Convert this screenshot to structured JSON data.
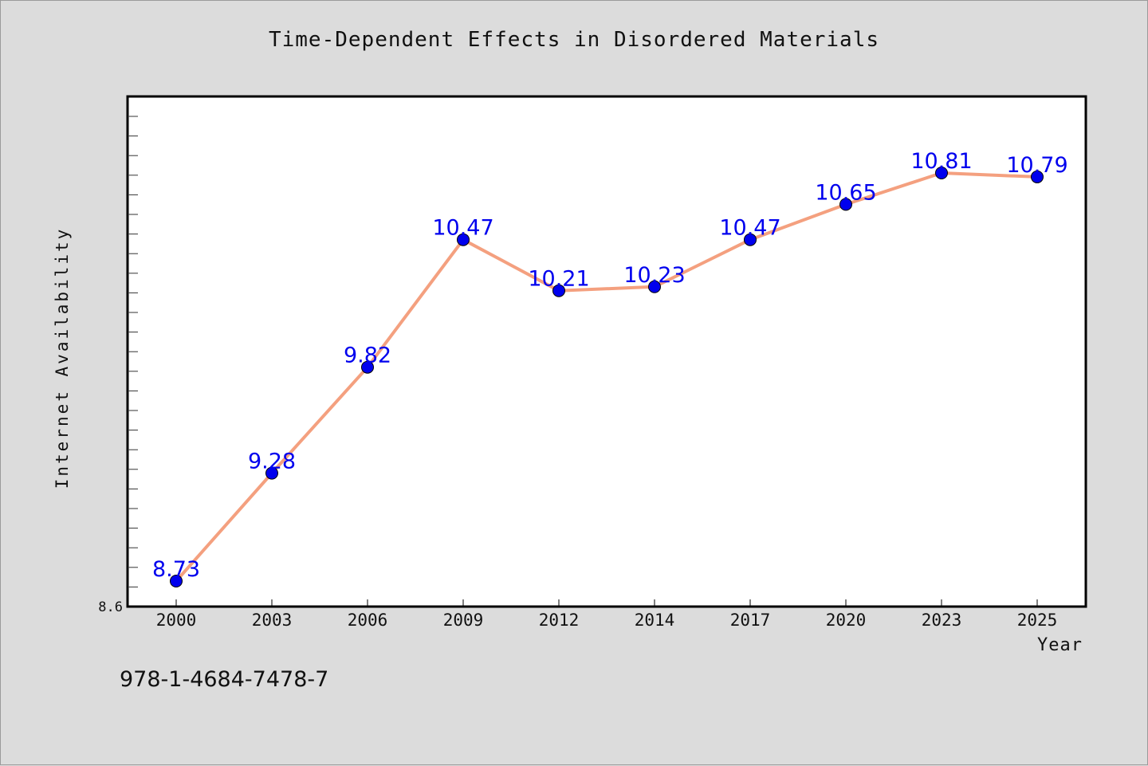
{
  "chart_data": {
    "type": "line",
    "title": "Time-Dependent Effects in Disordered Materials",
    "xlabel": "Year",
    "ylabel": "Internet Availability",
    "categories": [
      "2000",
      "2003",
      "2006",
      "2009",
      "2012",
      "2014",
      "2017",
      "2020",
      "2023",
      "2025"
    ],
    "series": [
      {
        "values": [
          8.73,
          9.28,
          9.82,
          10.47,
          10.21,
          10.23,
          10.47,
          10.65,
          10.81,
          10.79
        ],
        "labels": [
          "8.73",
          "9.28",
          "9.82",
          "10.47",
          "10.21",
          "10.23",
          "10.47",
          "10.65",
          "10.81",
          "10.79"
        ]
      }
    ],
    "ytick_labels": [
      "8.6"
    ],
    "ylim": [
      8.6,
      11.2
    ],
    "grid": false,
    "colors": {
      "line": "#f4a07f",
      "marker": "#0000ee",
      "data_label": "#0000ee",
      "plot_background": "#ffffff",
      "page_background": "#dcdcdc"
    }
  },
  "footer": {
    "isbn": "978-1-4684-7478-7"
  }
}
